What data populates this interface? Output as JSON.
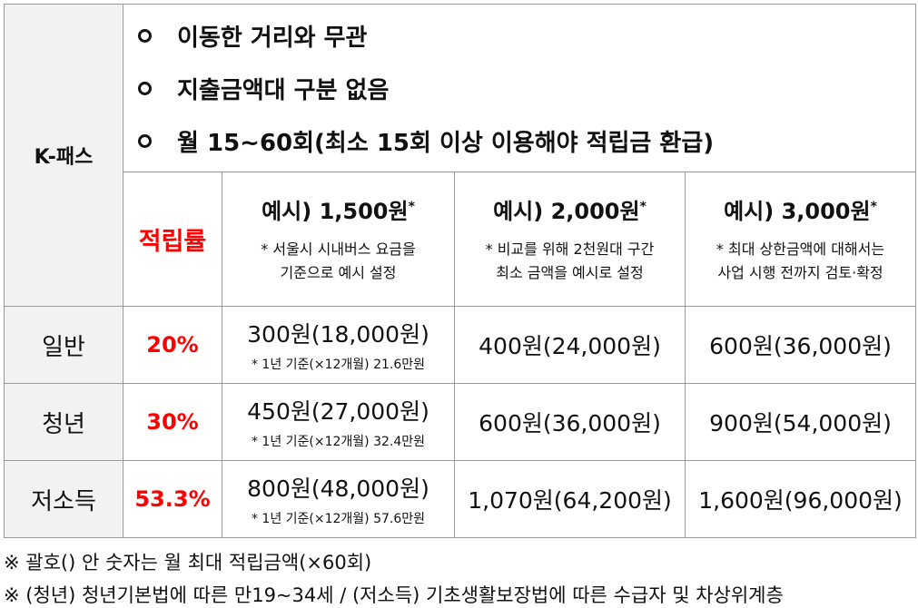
{
  "header": {
    "label": "K-패스",
    "features": [
      "이동한 거리와 무관",
      "지출금액대 구분 없음",
      "월 15~60회(최소 15회 이상 이용해야 적립금 환급)"
    ]
  },
  "columns": {
    "rate_label": "적립률",
    "examples": [
      {
        "title": "예시) 1,500원",
        "star": "*",
        "note_line1": "* 서울시 시내버스 요금을",
        "note_line2": "기준으로 예시 설정"
      },
      {
        "title": "예시) 2,000원",
        "star": "*",
        "note_line1": "* 비교를 위해 2천원대 구간",
        "note_line2": "최소 금액을 예시로 설정"
      },
      {
        "title": "예시) 3,000원",
        "star": "*",
        "note_line1": "* 최대 상한금액에 대해서는",
        "note_line2": "사업 시행 전까지 검토·확정"
      }
    ]
  },
  "rows": [
    {
      "label": "일반",
      "rate": "20%",
      "amounts": [
        "300원(18,000원)",
        "400원(24,000원)",
        "600원(36,000원)"
      ],
      "note": "* 1년 기준(×12개월) 21.6만원"
    },
    {
      "label": "청년",
      "rate": "30%",
      "amounts": [
        "450원(27,000원)",
        "600원(36,000원)",
        "900원(54,000원)"
      ],
      "note": "* 1년 기준(×12개월) 32.4만원"
    },
    {
      "label": "저소득",
      "rate": "53.3%",
      "amounts": [
        "800원(48,000원)",
        "1,070원(64,200원)",
        "1,600원(96,000원)"
      ],
      "note": "* 1년 기준(×12개월) 57.6만원"
    }
  ],
  "footnotes": [
    "※ 괄호() 안 숫자는 월 최대 적립금액(×60회)",
    "※ (청년) 청년기본법에 따른 만19~34세 / (저소득) 기초생활보장법에 따른 수급자 및 차상위계층"
  ],
  "colors": {
    "accent_red": "#ff0000",
    "header_bg": "#f2f2f2",
    "border": "#9a9a9a"
  }
}
